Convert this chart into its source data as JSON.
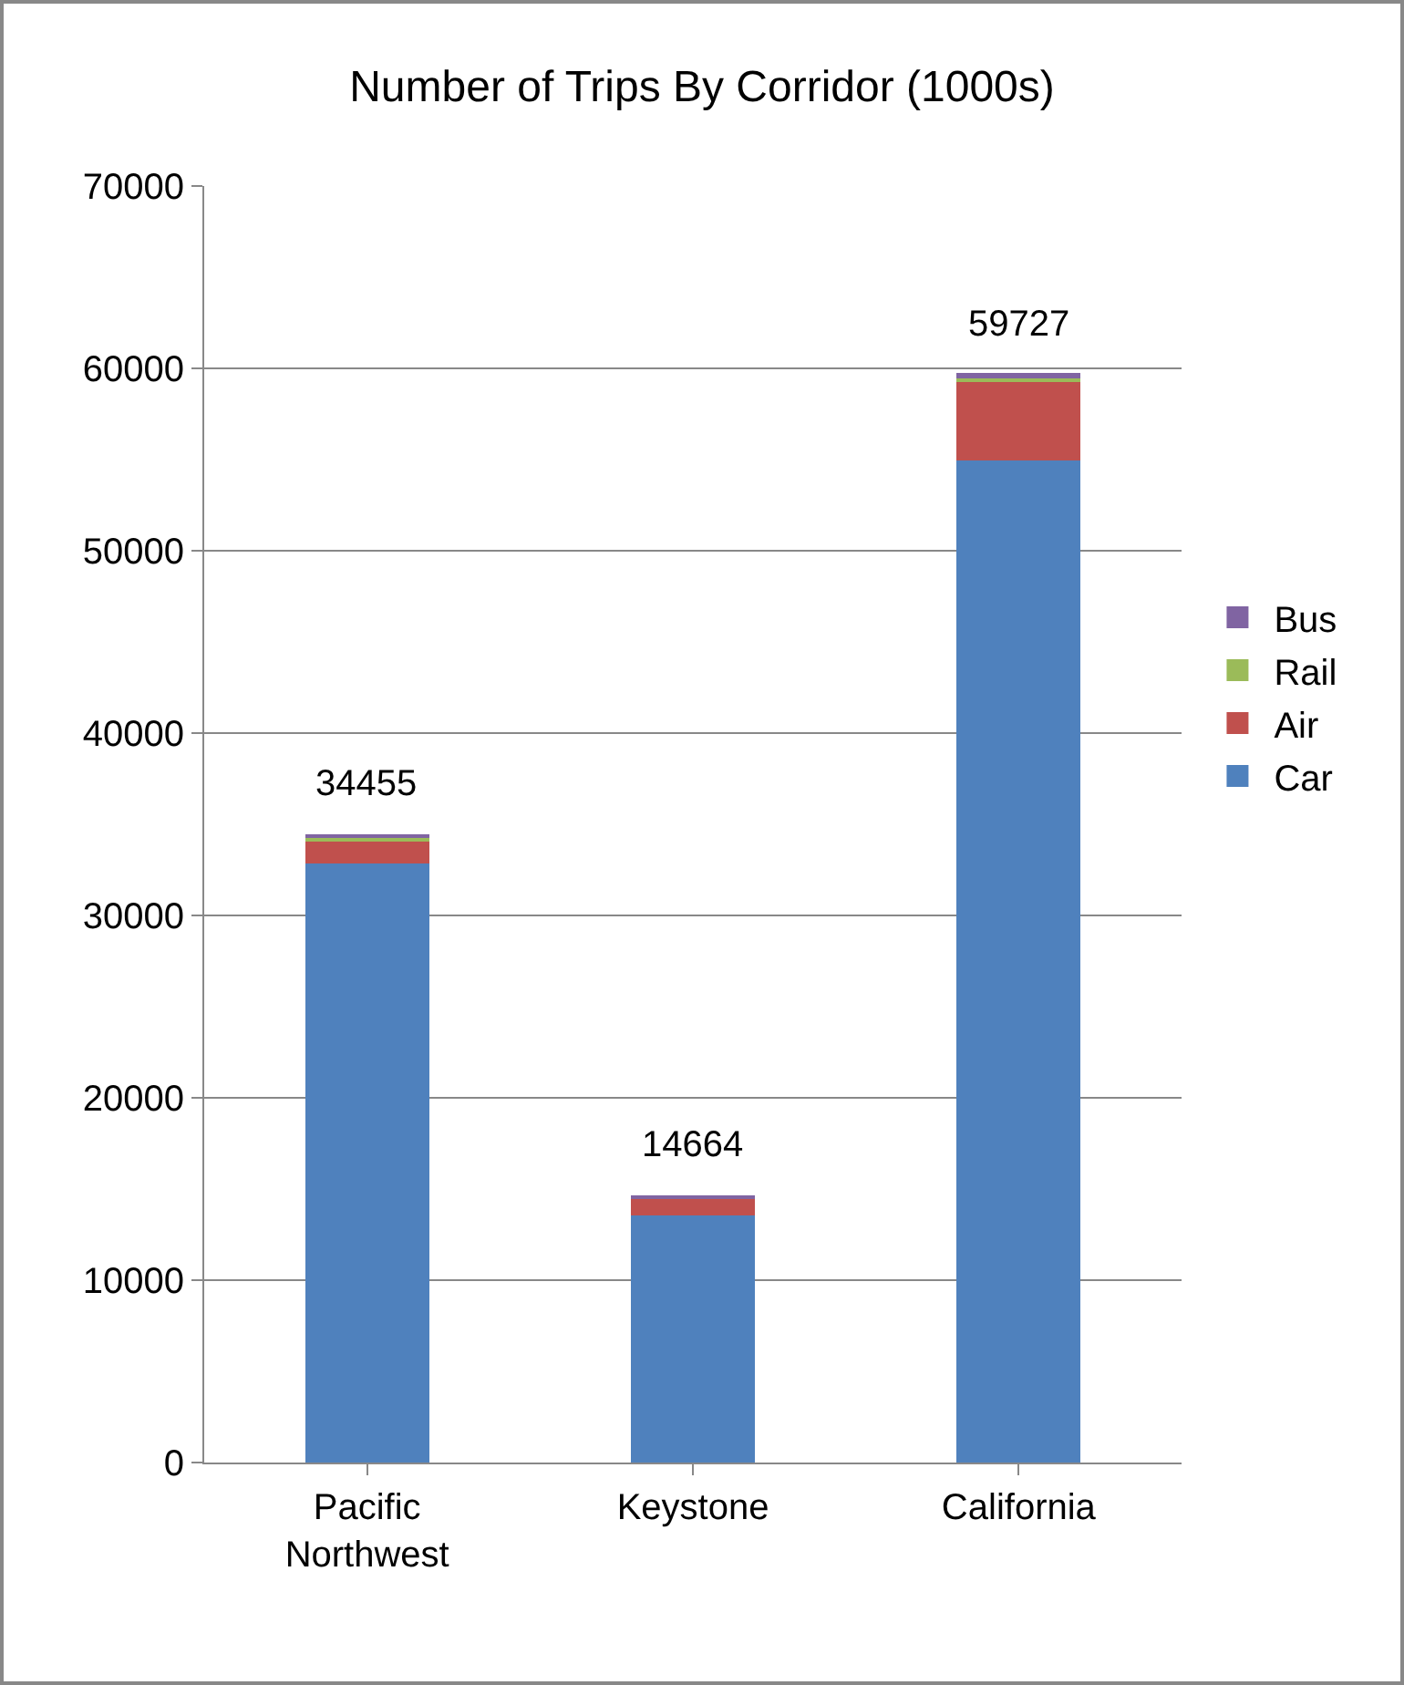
{
  "chart_data": {
    "type": "bar",
    "title": "Number of Trips By Corridor (1000s)",
    "categories": [
      "Pacific\nNorthwest",
      "Keystone",
      "California"
    ],
    "stacked": true,
    "series": [
      {
        "name": "Car",
        "color": "#4f81bd",
        "values": [
          32855,
          13564,
          54927
        ]
      },
      {
        "name": "Air",
        "color": "#c0504d",
        "values": [
          1200,
          900,
          4300
        ]
      },
      {
        "name": "Rail",
        "color": "#9bbb59",
        "values": [
          200,
          null,
          200
        ]
      },
      {
        "name": "Bus",
        "color": "#8064a2",
        "values": [
          200,
          200,
          300
        ]
      }
    ],
    "totals": [
      "34455",
      "14664",
      "59727"
    ],
    "ylim": [
      0,
      70000
    ],
    "yticks": [
      0,
      10000,
      20000,
      30000,
      40000,
      50000,
      60000,
      70000
    ],
    "grid": "y",
    "legend": "right"
  }
}
